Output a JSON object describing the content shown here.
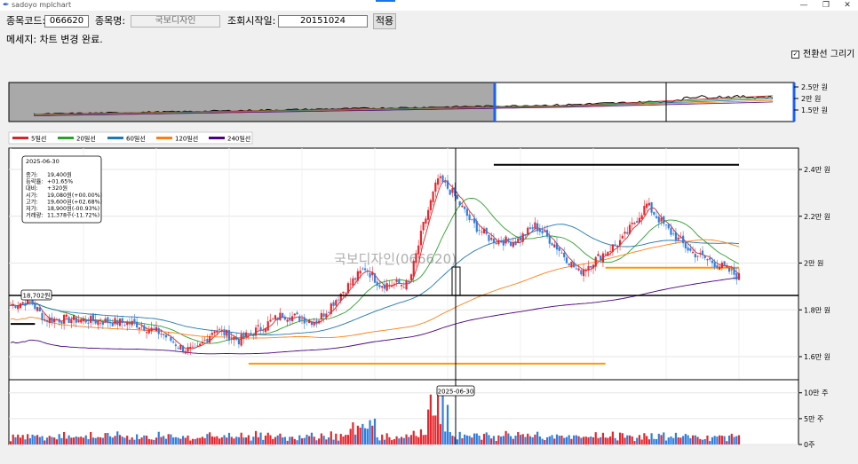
{
  "window": {
    "title": "sadoyo mplchart",
    "minimize": "—",
    "maximize": "❐",
    "close": "✕"
  },
  "form": {
    "code_label": "종목코드:",
    "code_value": "066620",
    "name_label": "종목명:",
    "name_value": "국보디자인",
    "start_label": "조회시작일:",
    "start_value": "20151024",
    "apply_label": "적용"
  },
  "message": "메세지: 차트 변경 완료.",
  "toggle": {
    "label": "전환선 그리기",
    "checked": true
  },
  "legend": [
    {
      "name": "5일선",
      "color": "#d62728"
    },
    {
      "name": "20일선",
      "color": "#2ca02c"
    },
    {
      "name": "60일선",
      "color": "#1f77b4"
    },
    {
      "name": "120일선",
      "color": "#ff7f0e"
    },
    {
      "name": "240일선",
      "color": "#4b0082"
    }
  ],
  "colors": {
    "up": "#e8262d",
    "down": "#2f7fe0"
  },
  "overview": {
    "y_ticks": [
      "2.5만 원",
      "2만 원",
      "1.5만 원"
    ]
  },
  "price_axis": {
    "ticks": [
      {
        "v": 24000,
        "label": "2.4만 원"
      },
      {
        "v": 22000,
        "label": "2.2만 원"
      },
      {
        "v": 20000,
        "label": "2만 원"
      },
      {
        "v": 18000,
        "label": "1.8만 원"
      },
      {
        "v": 16000,
        "label": "1.6만 원"
      }
    ]
  },
  "volume_axis": {
    "ticks": [
      {
        "v": 100000,
        "label": "10만 주"
      },
      {
        "v": 50000,
        "label": "5만 주"
      },
      {
        "v": 0,
        "label": "0주"
      }
    ]
  },
  "watermark": "국보디자인(066620)",
  "info_box": {
    "date": "2025-06-30",
    "rows": [
      {
        "k": "종가:",
        "v": "19,400원"
      },
      {
        "k": "등락률:",
        "v": "+01.65%"
      },
      {
        "k": "대비:",
        "v": "+320원"
      },
      {
        "k": "시가:",
        "v": "19,080원(+00.00%)"
      },
      {
        "k": "고가:",
        "v": "19,600원(+02.68%)"
      },
      {
        "k": "저가:",
        "v": "18,900원(-00.93%)"
      },
      {
        "k": "거래량:",
        "v": "11,378주(-11.72%)"
      }
    ]
  },
  "crosshair": {
    "date_label": "2025-06-30",
    "price_label": "18,702원"
  },
  "chart_data": {
    "type": "candlestick",
    "x_start": "2015-10-24",
    "price_ylim": [
      15000,
      25000
    ],
    "volume_ylim": [
      0,
      115000
    ],
    "keypoints": [
      [
        0,
        18200
      ],
      [
        8,
        18400
      ],
      [
        14,
        17600
      ],
      [
        24,
        17600
      ],
      [
        40,
        17500
      ],
      [
        52,
        17400
      ],
      [
        62,
        17000
      ],
      [
        70,
        16400
      ],
      [
        76,
        16200
      ],
      [
        84,
        17200
      ],
      [
        94,
        16700
      ],
      [
        104,
        17300
      ],
      [
        112,
        17800
      ],
      [
        126,
        17500
      ],
      [
        136,
        18700
      ],
      [
        146,
        19800
      ],
      [
        152,
        19100
      ],
      [
        164,
        19100
      ],
      [
        170,
        21600
      ],
      [
        176,
        23600
      ],
      [
        182,
        23000
      ],
      [
        190,
        21700
      ],
      [
        198,
        21000
      ],
      [
        208,
        20900
      ],
      [
        216,
        21600
      ],
      [
        224,
        20800
      ],
      [
        234,
        19600
      ],
      [
        244,
        20400
      ],
      [
        252,
        21000
      ],
      [
        262,
        22500
      ],
      [
        270,
        21500
      ],
      [
        280,
        20500
      ],
      [
        292,
        19900
      ],
      [
        300,
        19400
      ]
    ],
    "series": [
      {
        "name": "5일선",
        "color": "#d62728",
        "window": 5
      },
      {
        "name": "20일선",
        "color": "#2ca02c",
        "window": 20
      },
      {
        "name": "60일선",
        "color": "#1f77b4",
        "window": 60
      },
      {
        "name": "120일선",
        "color": "#ff7f0e",
        "window": 120
      },
      {
        "name": "240일선",
        "color": "#4b0082",
        "window": 240
      }
    ],
    "hlines": [
      {
        "y": 24200,
        "from": 199,
        "to": 302,
        "color": "#000000"
      },
      {
        "y": 19800,
        "from": 245,
        "to": 302,
        "color": "#ff9900"
      },
      {
        "y": 15700,
        "from": 98,
        "to": 245,
        "color": "#ff9900"
      },
      {
        "y": 17400,
        "from": 0,
        "to": 10,
        "color": "#000000"
      }
    ]
  }
}
